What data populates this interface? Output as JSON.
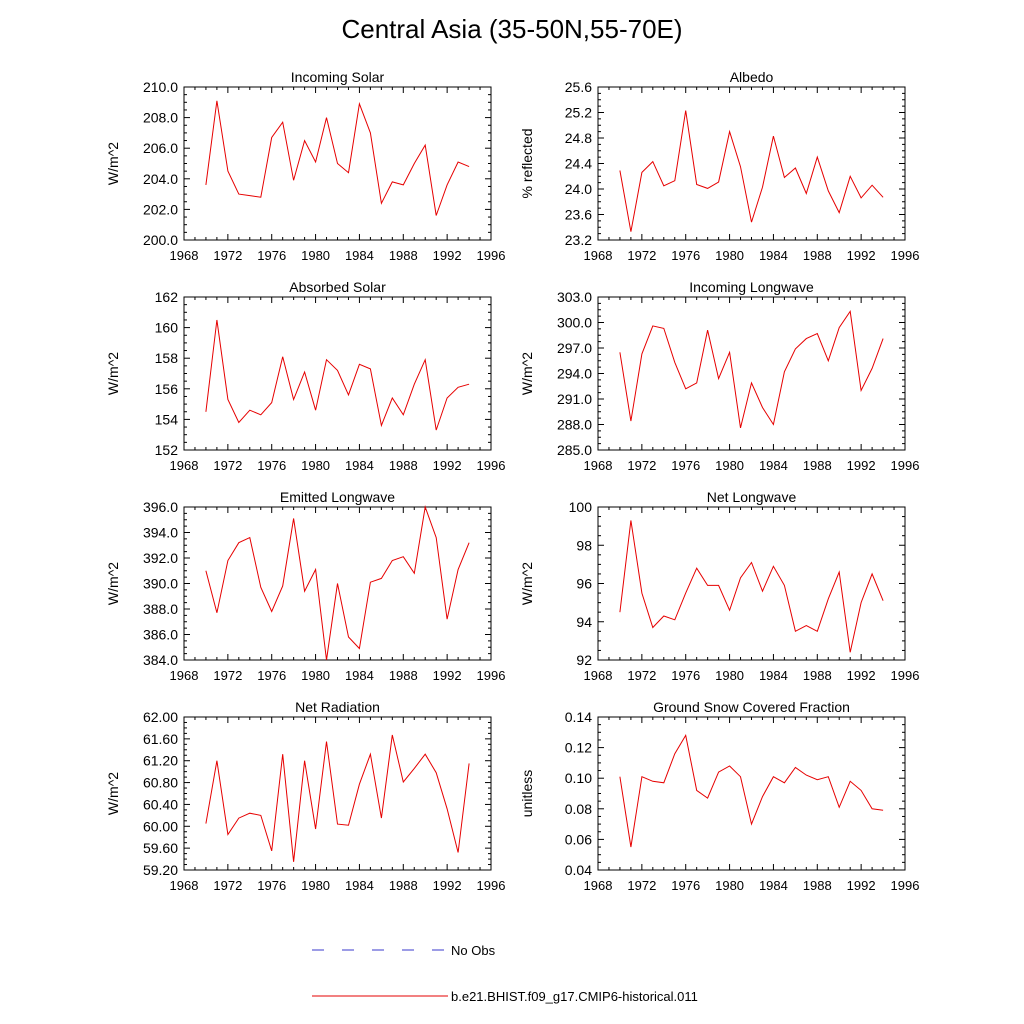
{
  "title": "Central Asia (35-50N,55-70E)",
  "colors": {
    "model": "#e60000",
    "obs": "#3a3acc",
    "axis": "#000000"
  },
  "legend": [
    {
      "label": "No Obs",
      "style": "dashed",
      "color": "#3a3acc"
    },
    {
      "label": "b.e21.BHIST.f09_g17.CMIP6-historical.011",
      "style": "solid",
      "color": "#e60000"
    }
  ],
  "chart_data": [
    {
      "type": "line",
      "title": "Incoming Solar",
      "ylabel": "W/m^2",
      "xlim": [
        1968,
        1996
      ],
      "ylim": [
        200,
        210
      ],
      "x_ticks": [
        1968,
        1972,
        1976,
        1980,
        1984,
        1988,
        1992,
        1996
      ],
      "y_ticks": [
        "200.0",
        "202.0",
        "204.0",
        "206.0",
        "208.0",
        "210.0"
      ],
      "x": [
        1970,
        1971,
        1972,
        1973,
        1974,
        1975,
        1976,
        1977,
        1978,
        1979,
        1980,
        1981,
        1982,
        1983,
        1984,
        1985,
        1986,
        1987,
        1988,
        1989,
        1990,
        1991,
        1992,
        1993,
        1994
      ],
      "series": [
        {
          "name": "b.e21.BHIST.f09_g17.CMIP6-historical.011",
          "values": [
            203.6,
            209.1,
            204.5,
            203.0,
            202.9,
            202.8,
            206.7,
            207.7,
            203.9,
            206.5,
            205.1,
            208.0,
            205.0,
            204.4,
            208.9,
            207.0,
            202.4,
            203.8,
            203.6,
            205.0,
            206.2,
            201.6,
            203.6,
            205.1,
            204.8
          ]
        }
      ]
    },
    {
      "type": "line",
      "title": "Albedo",
      "ylabel": "% reflected",
      "xlim": [
        1968,
        1996
      ],
      "ylim": [
        23.2,
        25.6
      ],
      "x_ticks": [
        1968,
        1972,
        1976,
        1980,
        1984,
        1988,
        1992,
        1996
      ],
      "y_ticks": [
        "23.2",
        "23.6",
        "24.0",
        "24.4",
        "24.8",
        "25.2",
        "25.6"
      ],
      "x": [
        1970,
        1971,
        1972,
        1973,
        1974,
        1975,
        1976,
        1977,
        1978,
        1979,
        1980,
        1981,
        1982,
        1983,
        1984,
        1985,
        1986,
        1987,
        1988,
        1989,
        1990,
        1991,
        1992,
        1993,
        1994
      ],
      "series": [
        {
          "name": "b.e21.BHIST.f09_g17.CMIP6-historical.011",
          "values": [
            24.29,
            23.33,
            24.26,
            24.43,
            24.05,
            24.13,
            25.23,
            24.07,
            24.01,
            24.11,
            24.9,
            24.35,
            23.48,
            24.03,
            24.83,
            24.18,
            24.33,
            23.93,
            24.5,
            23.97,
            23.63,
            24.2,
            23.86,
            24.06,
            23.87
          ]
        }
      ]
    },
    {
      "type": "line",
      "title": "Absorbed Solar",
      "ylabel": "W/m^2",
      "xlim": [
        1968,
        1996
      ],
      "ylim": [
        152,
        162
      ],
      "x_ticks": [
        1968,
        1972,
        1976,
        1980,
        1984,
        1988,
        1992,
        1996
      ],
      "y_ticks": [
        "152",
        "154",
        "156",
        "158",
        "160",
        "162"
      ],
      "x": [
        1970,
        1971,
        1972,
        1973,
        1974,
        1975,
        1976,
        1977,
        1978,
        1979,
        1980,
        1981,
        1982,
        1983,
        1984,
        1985,
        1986,
        1987,
        1988,
        1989,
        1990,
        1991,
        1992,
        1993,
        1994
      ],
      "series": [
        {
          "name": "b.e21.BHIST.f09_g17.CMIP6-historical.011",
          "values": [
            154.5,
            160.5,
            155.3,
            153.8,
            154.6,
            154.3,
            155.1,
            158.1,
            155.3,
            157.1,
            154.6,
            157.9,
            157.2,
            155.6,
            157.6,
            157.3,
            153.6,
            155.4,
            154.3,
            156.3,
            157.9,
            153.3,
            155.4,
            156.1,
            156.3
          ]
        }
      ]
    },
    {
      "type": "line",
      "title": "Incoming Longwave",
      "ylabel": "W/m^2",
      "xlim": [
        1968,
        1996
      ],
      "ylim": [
        285,
        303
      ],
      "x_ticks": [
        1968,
        1972,
        1976,
        1980,
        1984,
        1988,
        1992,
        1996
      ],
      "y_ticks": [
        "285.0",
        "288.0",
        "291.0",
        "294.0",
        "297.0",
        "300.0",
        "303.0"
      ],
      "x": [
        1970,
        1971,
        1972,
        1973,
        1974,
        1975,
        1976,
        1977,
        1978,
        1979,
        1980,
        1981,
        1982,
        1983,
        1984,
        1985,
        1986,
        1987,
        1988,
        1989,
        1990,
        1991,
        1992,
        1993,
        1994
      ],
      "series": [
        {
          "name": "b.e21.BHIST.f09_g17.CMIP6-historical.011",
          "values": [
            296.5,
            288.4,
            296.3,
            299.6,
            299.3,
            295.3,
            292.2,
            292.9,
            299.1,
            293.4,
            296.5,
            287.6,
            292.9,
            290.0,
            288.0,
            294.2,
            296.9,
            298.1,
            298.7,
            295.5,
            299.4,
            301.3,
            292.0,
            294.6,
            298.1
          ]
        }
      ]
    },
    {
      "type": "line",
      "title": "Emitted Longwave",
      "ylabel": "W/m^2",
      "xlim": [
        1968,
        1996
      ],
      "ylim": [
        384,
        396
      ],
      "x_ticks": [
        1968,
        1972,
        1976,
        1980,
        1984,
        1988,
        1992,
        1996
      ],
      "y_ticks": [
        "384.0",
        "386.0",
        "388.0",
        "390.0",
        "392.0",
        "394.0",
        "396.0"
      ],
      "x": [
        1970,
        1971,
        1972,
        1973,
        1974,
        1975,
        1976,
        1977,
        1978,
        1979,
        1980,
        1981,
        1982,
        1983,
        1984,
        1985,
        1986,
        1987,
        1988,
        1989,
        1990,
        1991,
        1992,
        1993,
        1994
      ],
      "series": [
        {
          "name": "b.e21.BHIST.f09_g17.CMIP6-historical.011",
          "values": [
            391.0,
            387.7,
            391.8,
            393.2,
            393.6,
            389.7,
            387.8,
            389.8,
            395.1,
            389.4,
            391.1,
            384.0,
            390.0,
            385.8,
            384.9,
            390.1,
            390.4,
            391.8,
            392.1,
            390.8,
            396.0,
            393.6,
            387.2,
            391.1,
            393.2
          ]
        }
      ]
    },
    {
      "type": "line",
      "title": "Net Longwave",
      "ylabel": "W/m^2",
      "xlim": [
        1968,
        1996
      ],
      "ylim": [
        92,
        100
      ],
      "x_ticks": [
        1968,
        1972,
        1976,
        1980,
        1984,
        1988,
        1992,
        1996
      ],
      "y_ticks": [
        "92",
        "94",
        "96",
        "98",
        "100"
      ],
      "x": [
        1970,
        1971,
        1972,
        1973,
        1974,
        1975,
        1976,
        1977,
        1978,
        1979,
        1980,
        1981,
        1982,
        1983,
        1984,
        1985,
        1986,
        1987,
        1988,
        1989,
        1990,
        1991,
        1992,
        1993,
        1994
      ],
      "series": [
        {
          "name": "b.e21.BHIST.f09_g17.CMIP6-historical.011",
          "values": [
            94.5,
            99.3,
            95.5,
            93.7,
            94.3,
            94.1,
            95.5,
            96.8,
            95.9,
            95.9,
            94.6,
            96.3,
            97.1,
            95.6,
            96.9,
            95.9,
            93.5,
            93.8,
            93.5,
            95.2,
            96.6,
            92.4,
            95.0,
            96.5,
            95.1
          ]
        }
      ]
    },
    {
      "type": "line",
      "title": "Net Radiation",
      "ylabel": "W/m^2",
      "xlim": [
        1968,
        1996
      ],
      "ylim": [
        59.2,
        62.0
      ],
      "x_ticks": [
        1968,
        1972,
        1976,
        1980,
        1984,
        1988,
        1992,
        1996
      ],
      "y_ticks": [
        "59.20",
        "59.60",
        "60.00",
        "60.40",
        "60.80",
        "61.20",
        "61.60",
        "62.00"
      ],
      "x": [
        1970,
        1971,
        1972,
        1973,
        1974,
        1975,
        1976,
        1977,
        1978,
        1979,
        1980,
        1981,
        1982,
        1983,
        1984,
        1985,
        1986,
        1987,
        1988,
        1989,
        1990,
        1991,
        1992,
        1993,
        1994
      ],
      "series": [
        {
          "name": "b.e21.BHIST.f09_g17.CMIP6-historical.011",
          "values": [
            60.05,
            61.2,
            59.85,
            60.15,
            60.24,
            60.2,
            59.55,
            61.32,
            59.35,
            61.2,
            59.95,
            61.55,
            60.04,
            60.02,
            60.77,
            61.32,
            60.15,
            61.67,
            60.81,
            61.06,
            61.32,
            60.98,
            60.32,
            59.52,
            61.15
          ]
        }
      ]
    },
    {
      "type": "line",
      "title": "Ground Snow Covered Fraction",
      "ylabel": "unitless",
      "xlim": [
        1968,
        1996
      ],
      "ylim": [
        0.04,
        0.14
      ],
      "x_ticks": [
        1968,
        1972,
        1976,
        1980,
        1984,
        1988,
        1992,
        1996
      ],
      "y_ticks": [
        "0.04",
        "0.06",
        "0.08",
        "0.10",
        "0.12",
        "0.14"
      ],
      "x": [
        1970,
        1971,
        1972,
        1973,
        1974,
        1975,
        1976,
        1977,
        1978,
        1979,
        1980,
        1981,
        1982,
        1983,
        1984,
        1985,
        1986,
        1987,
        1988,
        1989,
        1990,
        1991,
        1992,
        1993,
        1994
      ],
      "series": [
        {
          "name": "b.e21.BHIST.f09_g17.CMIP6-historical.011",
          "values": [
            0.101,
            0.055,
            0.101,
            0.098,
            0.097,
            0.116,
            0.128,
            0.092,
            0.087,
            0.104,
            0.108,
            0.101,
            0.07,
            0.088,
            0.101,
            0.097,
            0.107,
            0.102,
            0.099,
            0.101,
            0.081,
            0.098,
            0.092,
            0.08,
            0.079
          ]
        }
      ]
    }
  ]
}
